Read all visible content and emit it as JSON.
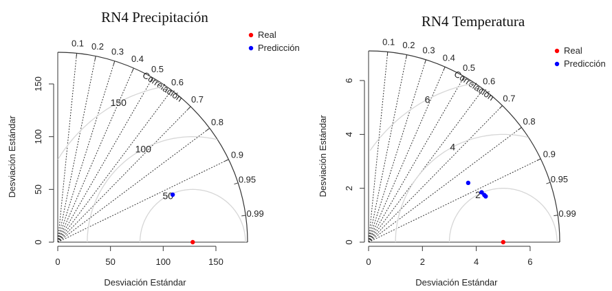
{
  "chart_data": [
    {
      "type": "scatter",
      "subtype": "taylor-diagram",
      "title": "RN4 Precipitación",
      "xlabel": "Desviación Estándar",
      "ylabel": "Desviación Estándar",
      "correlation_label": "Correlación",
      "sd_max": 180,
      "sd_ticks": [
        0,
        50,
        100,
        150
      ],
      "correlation_ticks": [
        "0.1",
        "0.2",
        "0.3",
        "0.4",
        "0.5",
        "0.6",
        "0.7",
        "0.8",
        "0.9",
        "0.95",
        "0.99"
      ],
      "rmsd_contours": [
        50,
        100,
        150
      ],
      "reference_sd": 128,
      "legend": {
        "position": "top-right",
        "entries": [
          {
            "label": "Real",
            "color": "#ff0000"
          },
          {
            "label": "Predicción",
            "color": "#0000ff"
          }
        ]
      },
      "points": [
        {
          "series": "Real",
          "x": 128,
          "y": 0
        },
        {
          "series": "Predicción",
          "x": 109,
          "y": 45
        }
      ]
    },
    {
      "type": "scatter",
      "subtype": "taylor-diagram",
      "title": "RN4 Temperatura",
      "xlabel": "Desviación Estándar",
      "ylabel": "Desviación Estándar",
      "correlation_label": "Correlación",
      "sd_max": 7.1,
      "sd_ticks": [
        0,
        2,
        4,
        6
      ],
      "correlation_ticks": [
        "0.1",
        "0.2",
        "0.3",
        "0.4",
        "0.5",
        "0.6",
        "0.7",
        "0.8",
        "0.9",
        "0.95",
        "0.99"
      ],
      "rmsd_contours": [
        2,
        4,
        6
      ],
      "reference_sd": 5.0,
      "legend": {
        "position": "top-right",
        "entries": [
          {
            "label": "Real",
            "color": "#ff0000"
          },
          {
            "label": "Predicción",
            "color": "#0000ff"
          }
        ]
      },
      "points": [
        {
          "series": "Real",
          "x": 5.0,
          "y": 0
        },
        {
          "series": "Predicción",
          "x": 3.7,
          "y": 2.2
        },
        {
          "series": "Predicción",
          "x": 4.2,
          "y": 1.85
        },
        {
          "series": "Predicción",
          "x": 4.3,
          "y": 1.75
        },
        {
          "series": "Predicción",
          "x": 4.35,
          "y": 1.7
        }
      ]
    }
  ]
}
